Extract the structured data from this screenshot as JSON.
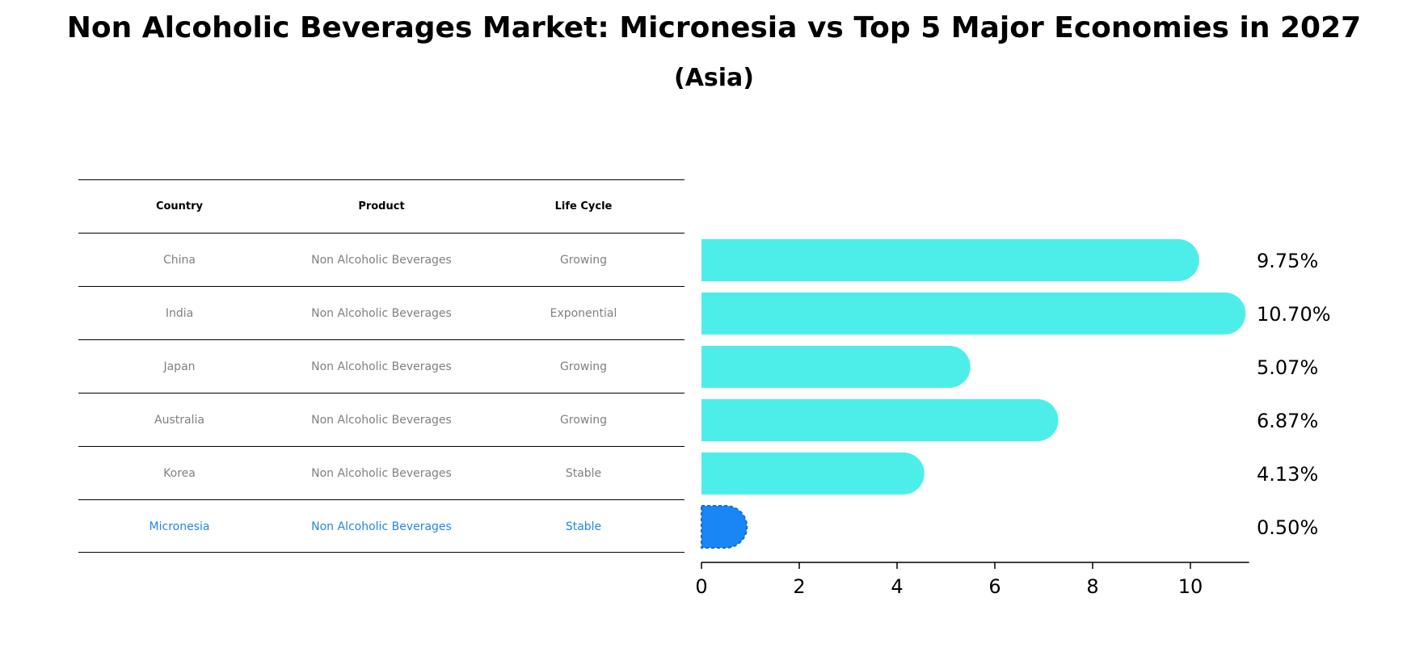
{
  "title": "Non Alcoholic Beverages Market: Micronesia vs Top 5 Major Economies in 2027",
  "subtitle": "(Asia)",
  "table": {
    "headers": [
      "Country",
      "Product",
      "Life Cycle"
    ],
    "rows": [
      {
        "country": "China",
        "product": "Non Alcoholic Beverages",
        "life_cycle": "Growing"
      },
      {
        "country": "India",
        "product": "Non Alcoholic Beverages",
        "life_cycle": "Exponential"
      },
      {
        "country": "Japan",
        "product": "Non Alcoholic Beverages",
        "life_cycle": "Growing"
      },
      {
        "country": "Australia",
        "product": "Non Alcoholic Beverages",
        "life_cycle": "Growing"
      },
      {
        "country": "Korea",
        "product": "Non Alcoholic Beverages",
        "life_cycle": "Stable"
      },
      {
        "country": "Micronesia",
        "product": "Non Alcoholic Beverages",
        "life_cycle": "Stable"
      }
    ]
  },
  "colors": {
    "bar": "#4deeea",
    "highlight": "#1a85f5",
    "highlight_text": "#1e88e5",
    "muted_text": "#808080"
  },
  "chart_data": {
    "type": "bar",
    "orientation": "horizontal",
    "categories": [
      "China",
      "India",
      "Japan",
      "Australia",
      "Korea",
      "Micronesia"
    ],
    "values": [
      9.75,
      10.7,
      5.07,
      6.87,
      4.13,
      0.5
    ],
    "value_labels": [
      "9.75%",
      "10.70%",
      "5.07%",
      "6.87%",
      "4.13%",
      "0.50%"
    ],
    "highlight_index": 5,
    "xlim": [
      0,
      11.2
    ],
    "xticks": [
      0,
      2,
      4,
      6,
      8,
      10
    ],
    "xlabel": "",
    "ylabel": "",
    "grid": false,
    "legend": "none"
  }
}
